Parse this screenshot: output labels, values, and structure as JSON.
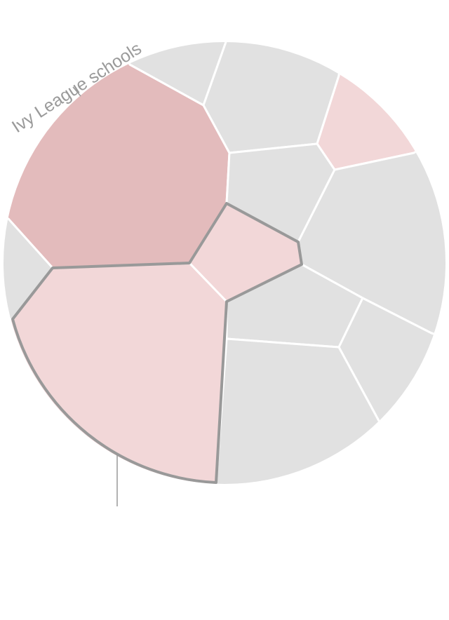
{
  "annotations": [
    {
      "label": "Ivy League schools"
    }
  ]
}
